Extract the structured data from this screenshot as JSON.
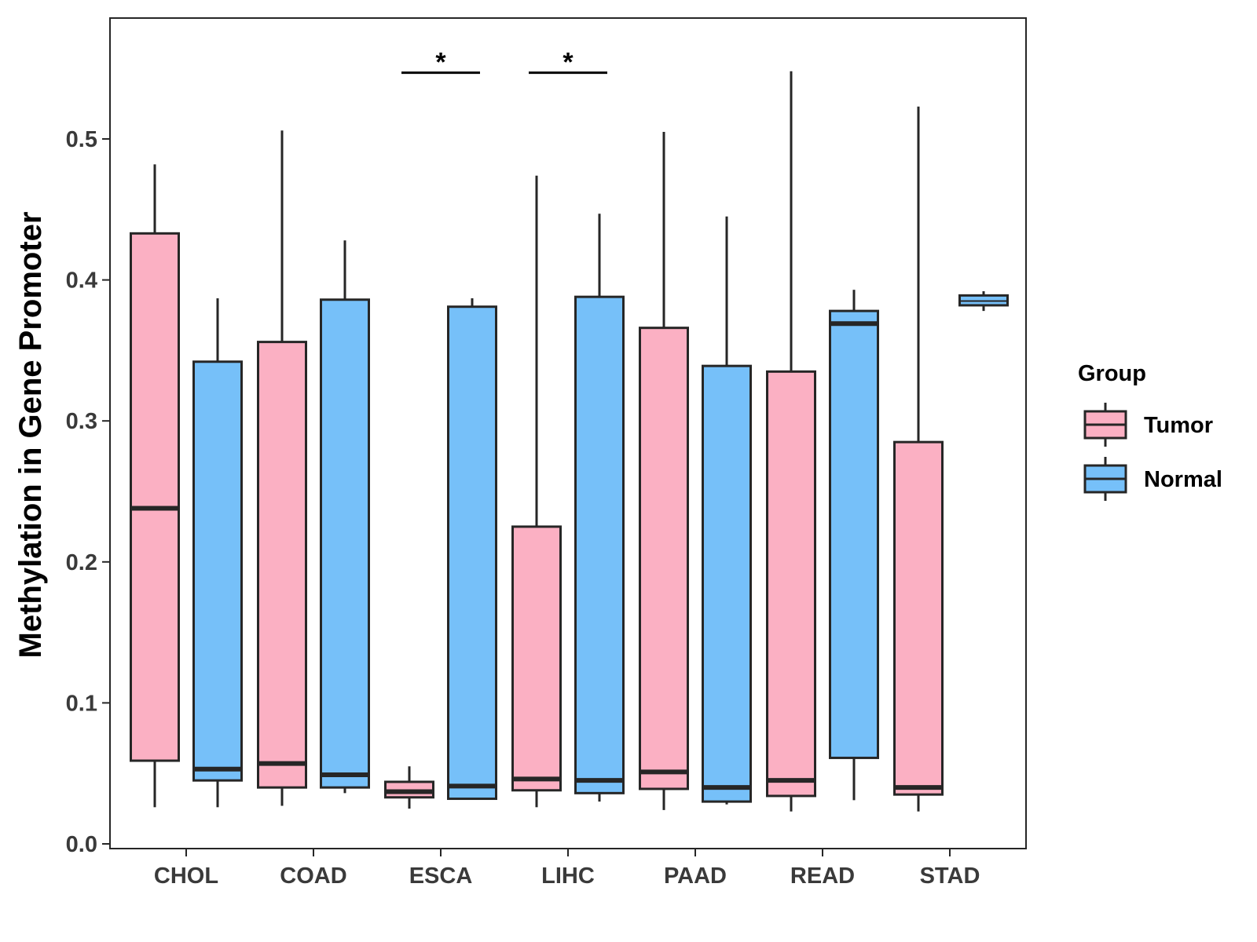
{
  "chart_data": {
    "type": "boxplot",
    "title": "",
    "xlabel": "",
    "ylabel": "Methylation in Gene Promoter",
    "ylim": [
      0.0,
      0.58
    ],
    "y_ticks": [
      "0.0",
      "0.1",
      "0.2",
      "0.3",
      "0.4",
      "0.5"
    ],
    "grid": false,
    "categories": [
      "CHOL",
      "COAD",
      "ESCA",
      "LIHC",
      "PAAD",
      "READ",
      "STAD"
    ],
    "legend": {
      "title": "Group",
      "placement": "right",
      "items": [
        {
          "name": "Tumor",
          "color": "#FBB0C3"
        },
        {
          "name": "Normal",
          "color": "#76C0F9"
        }
      ]
    },
    "series": [
      {
        "name": "Tumor",
        "color": "#FBB0C3",
        "boxes": [
          {
            "category": "CHOL",
            "min": 0.026,
            "q1": 0.059,
            "median": 0.238,
            "q3": 0.433,
            "max": 0.482
          },
          {
            "category": "COAD",
            "min": 0.027,
            "q1": 0.04,
            "median": 0.057,
            "q3": 0.356,
            "max": 0.506
          },
          {
            "category": "ESCA",
            "min": 0.025,
            "q1": 0.033,
            "median": 0.037,
            "q3": 0.044,
            "max": 0.055
          },
          {
            "category": "LIHC",
            "min": 0.026,
            "q1": 0.038,
            "median": 0.046,
            "q3": 0.225,
            "max": 0.474
          },
          {
            "category": "PAAD",
            "min": 0.024,
            "q1": 0.039,
            "median": 0.051,
            "q3": 0.366,
            "max": 0.505
          },
          {
            "category": "READ",
            "min": 0.023,
            "q1": 0.034,
            "median": 0.045,
            "q3": 0.335,
            "max": 0.548
          },
          {
            "category": "STAD",
            "min": 0.023,
            "q1": 0.035,
            "median": 0.04,
            "q3": 0.285,
            "max": 0.523
          }
        ]
      },
      {
        "name": "Normal",
        "color": "#76C0F9",
        "boxes": [
          {
            "category": "CHOL",
            "min": 0.026,
            "q1": 0.045,
            "median": 0.053,
            "q3": 0.342,
            "max": 0.387
          },
          {
            "category": "COAD",
            "min": 0.036,
            "q1": 0.04,
            "median": 0.049,
            "q3": 0.386,
            "max": 0.428
          },
          {
            "category": "ESCA",
            "min": 0.032,
            "q1": 0.032,
            "median": 0.041,
            "q3": 0.381,
            "max": 0.387
          },
          {
            "category": "LIHC",
            "min": 0.03,
            "q1": 0.036,
            "median": 0.045,
            "q3": 0.388,
            "max": 0.447
          },
          {
            "category": "PAAD",
            "min": 0.028,
            "q1": 0.03,
            "median": 0.04,
            "q3": 0.339,
            "max": 0.445
          },
          {
            "category": "READ",
            "min": 0.031,
            "q1": 0.061,
            "median": 0.369,
            "q3": 0.378,
            "max": 0.393
          },
          {
            "category": "STAD",
            "min": 0.378,
            "q1": 0.382,
            "median": 0.385,
            "q3": 0.389,
            "max": 0.392
          }
        ]
      }
    ],
    "annotations": [
      {
        "category": "ESCA",
        "text": "*",
        "y": 0.547
      },
      {
        "category": "LIHC",
        "text": "*",
        "y": 0.547
      }
    ]
  }
}
